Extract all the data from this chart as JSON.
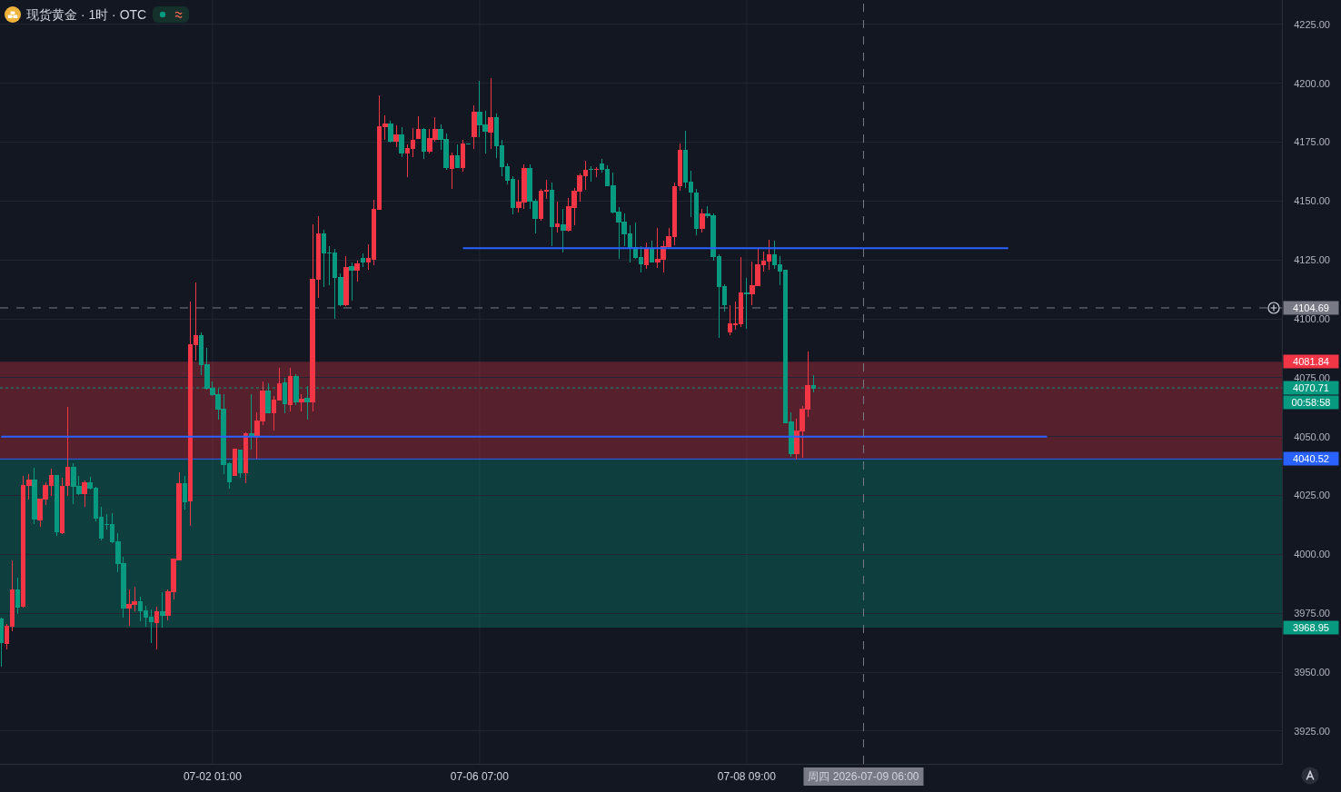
{
  "chart_data": {
    "type": "candlestick",
    "title": "现货黄金 · 1时 · OTC",
    "categories": [
      null,
      null,
      null,
      null,
      null,
      null,
      null,
      null,
      null,
      null,
      null,
      null,
      null,
      null,
      null,
      null,
      null,
      null,
      null,
      null,
      null,
      null,
      null,
      null,
      null,
      null,
      null,
      null,
      null,
      null,
      null,
      null,
      null,
      null,
      null,
      null,
      null,
      null,
      "07-02 01:00",
      null,
      null,
      null,
      null,
      null,
      null,
      null,
      null,
      null,
      null,
      null,
      null,
      null,
      null,
      null,
      null,
      null,
      null,
      null,
      null,
      null,
      null,
      null,
      null,
      null,
      null,
      null,
      null,
      null,
      null,
      null,
      null,
      null,
      null,
      null,
      null,
      null,
      null,
      null,
      null,
      null,
      null,
      null,
      null,
      null,
      null,
      null,
      "07-06 07:00",
      null,
      null,
      null,
      null,
      null,
      null,
      null,
      null,
      null,
      null,
      null,
      null,
      null,
      null,
      null,
      null,
      null,
      null,
      null,
      null,
      null,
      null,
      null,
      null,
      null,
      null,
      null,
      null,
      null,
      null,
      null,
      null,
      null,
      null,
      null,
      null,
      null,
      null,
      null,
      null,
      null,
      null,
      null,
      null,
      null,
      null,
      null,
      "07-08 09:00",
      null,
      null,
      null,
      null,
      null,
      null,
      null,
      null,
      null,
      null,
      null,
      null,
      null,
      null,
      null,
      null,
      null,
      null,
      null,
      null,
      "周四 2026-07-09 06:00",
      null,
      null,
      null,
      null,
      null,
      null,
      null,
      null,
      null,
      null,
      null,
      null,
      null,
      null,
      null,
      null,
      null,
      null,
      null,
      null,
      null,
      null,
      null,
      null,
      null,
      null,
      null,
      null,
      null,
      null,
      null,
      null,
      null,
      null,
      null,
      null,
      null,
      null,
      null,
      null,
      null,
      null,
      null,
      null,
      null,
      null,
      null,
      null,
      null,
      null,
      null,
      null,
      null,
      null,
      null,
      null,
      null,
      null,
      null,
      null,
      null,
      null,
      null,
      null,
      null,
      null,
      null,
      null,
      null,
      null,
      null,
      null,
      null,
      null,
      null
    ],
    "ohlc": [
      [
        3972.5,
        3973.0,
        3952.3,
        3962.6
      ],
      [
        3962.2,
        3970.6,
        3959.7,
        3969.4
      ],
      [
        3969.4,
        3997.6,
        3967.5,
        3984.9
      ],
      [
        3984.9,
        3990.3,
        3974.8,
        3977.5
      ],
      [
        3977.9,
        4033.5,
        3977.5,
        4029.2
      ],
      [
        4029.2,
        4034.3,
        4023.5,
        4031.6
      ],
      [
        4031.6,
        4037.0,
        4013.0,
        4015.0
      ],
      [
        4014.6,
        4023.5,
        4011.9,
        4023.5
      ],
      [
        4023.5,
        4030.8,
        4021.1,
        4029.2
      ],
      [
        4029.2,
        4036.6,
        4025.0,
        4033.5
      ],
      [
        4033.5,
        4033.9,
        4008.0,
        4009.6
      ],
      [
        4009.2,
        4032.7,
        4008.8,
        4028.9
      ],
      [
        4029.2,
        4062.8,
        4025.0,
        4037.0
      ],
      [
        4037.0,
        4038.9,
        4021.5,
        4028.9
      ],
      [
        4028.9,
        4033.5,
        4025.4,
        4025.8
      ],
      [
        4025.8,
        4031.6,
        4020.4,
        4030.4
      ],
      [
        4030.4,
        4033.1,
        4027.7,
        4028.1
      ],
      [
        4028.1,
        4028.9,
        4014.2,
        4015.4
      ],
      [
        4015.7,
        4020.4,
        4006.1,
        4006.9
      ],
      [
        4012.6,
        4017.3,
        4010.7,
        4012.6
      ],
      [
        4012.6,
        4017.7,
        4004.9,
        4005.3
      ],
      [
        4005.3,
        4009.2,
        3992.6,
        3996.0
      ],
      [
        3996.0,
        3999.1,
        3973.3,
        3977.1
      ],
      [
        3977.1,
        3985.2,
        3969.8,
        3978.7
      ],
      [
        3978.7,
        3986.4,
        3976.0,
        3979.8
      ],
      [
        3979.8,
        3982.1,
        3971.7,
        3976.0
      ],
      [
        3976.0,
        3978.3,
        3969.4,
        3973.3
      ],
      [
        3973.3,
        3976.7,
        3962.4,
        3971.3
      ],
      [
        3970.9,
        3977.9,
        3959.7,
        3975.6
      ],
      [
        3975.6,
        3984.1,
        3969.0,
        3974.0
      ],
      [
        3974.0,
        3985.2,
        3972.1,
        3984.1
      ],
      [
        3984.1,
        3998.4,
        3981.0,
        3998.0
      ],
      [
        3997.6,
        4035.0,
        3997.6,
        4030.0
      ],
      [
        4030.0,
        4033.5,
        4019.2,
        4022.3
      ],
      [
        4022.7,
        4107.2,
        4012.3,
        4089.1
      ],
      [
        4089.1,
        4115.3,
        4082.5,
        4093.0
      ],
      [
        4093.0,
        4094.1,
        4076.3,
        4080.6
      ],
      [
        4080.6,
        4087.9,
        4069.8,
        4070.6
      ],
      [
        4070.6,
        4073.3,
        4067.1,
        4067.9
      ],
      [
        4067.9,
        4070.2,
        4057.4,
        4061.7
      ],
      [
        4061.7,
        4067.9,
        4034.3,
        4038.1
      ],
      [
        4038.5,
        4039.2,
        4028.1,
        4030.8
      ],
      [
        4033.5,
        4044.7,
        4033.5,
        4044.7
      ],
      [
        4044.3,
        4044.7,
        4032.7,
        4034.6
      ],
      [
        4034.6,
        4052.0,
        4030.4,
        4051.3
      ],
      [
        4051.3,
        4067.9,
        4044.7,
        4050.5
      ],
      [
        4050.1,
        4060.5,
        4040.8,
        4056.7
      ],
      [
        4056.7,
        4073.6,
        4055.1,
        4069.4
      ],
      [
        4069.4,
        4072.5,
        4060.1,
        4060.1
      ],
      [
        4060.1,
        4067.1,
        4052.8,
        4065.5
      ],
      [
        4065.5,
        4079.1,
        4065.5,
        4072.5
      ],
      [
        4072.9,
        4074.8,
        4060.1,
        4064.0
      ],
      [
        4063.6,
        4079.4,
        4060.9,
        4075.6
      ],
      [
        4075.6,
        4076.4,
        4063.6,
        4064.8
      ],
      [
        4064.8,
        4068.2,
        4060.9,
        4065.9
      ],
      [
        4066.3,
        4071.7,
        4057.1,
        4064.8
      ],
      [
        4064.8,
        4140.1,
        4060.9,
        4116.9
      ],
      [
        4116.9,
        4143.5,
        4108.8,
        4136.2
      ],
      [
        4136.2,
        4137.8,
        4113.4,
        4128.1
      ],
      [
        4128.1,
        4130.8,
        4114.2,
        4128.1
      ],
      [
        4128.1,
        4129.6,
        4099.9,
        4117.7
      ],
      [
        4117.7,
        4119.2,
        4105.3,
        4106.1
      ],
      [
        4106.1,
        4126.5,
        4105.3,
        4121.9
      ],
      [
        4122.3,
        4123.9,
        4107.6,
        4120.8
      ],
      [
        4120.8,
        4124.6,
        4115.7,
        4123.5
      ],
      [
        4125.8,
        4127.7,
        4121.9,
        4124.2
      ],
      [
        4124.2,
        4131.6,
        4120.8,
        4125.8
      ],
      [
        4125.4,
        4150.5,
        4122.7,
        4146.6
      ],
      [
        4146.6,
        4194.9,
        4146.2,
        4181.8
      ],
      [
        4181.8,
        4186.4,
        4176.0,
        4182.9
      ],
      [
        4182.9,
        4184.1,
        4174.8,
        4175.6
      ],
      [
        4175.6,
        4182.2,
        4172.9,
        4178.3
      ],
      [
        4178.3,
        4181.4,
        4168.6,
        4170.6
      ],
      [
        4170.6,
        4174.0,
        4160.1,
        4172.5
      ],
      [
        4172.5,
        4181.0,
        4168.6,
        4176.0
      ],
      [
        4176.7,
        4186.0,
        4176.3,
        4180.6
      ],
      [
        4180.6,
        4181.0,
        4167.9,
        4171.3
      ],
      [
        4171.3,
        4180.6,
        4170.2,
        4176.7
      ],
      [
        4176.4,
        4185.6,
        4175.2,
        4180.6
      ],
      [
        4180.6,
        4182.5,
        4171.7,
        4176.4
      ],
      [
        4176.4,
        4178.7,
        4163.2,
        4164.4
      ],
      [
        4164.0,
        4170.6,
        4155.1,
        4169.4
      ],
      [
        4169.4,
        4174.0,
        4164.0,
        4164.4
      ],
      [
        4164.4,
        4176.0,
        4162.5,
        4174.4
      ],
      [
        4174.3,
        4174.3,
        4174.3,
        4174.3
      ],
      [
        4177.5,
        4190.6,
        4172.1,
        4187.6
      ],
      [
        4187.6,
        4201.1,
        4177.1,
        4182.5
      ],
      [
        4182.5,
        4188.3,
        4170.2,
        4179.8
      ],
      [
        4179.4,
        4202.2,
        4172.1,
        4185.6
      ],
      [
        4185.6,
        4187.2,
        4168.3,
        4173.7
      ],
      [
        4173.7,
        4176.0,
        4160.5,
        4164.8
      ],
      [
        4164.8,
        4165.9,
        4157.1,
        4159.0
      ],
      [
        4159.4,
        4160.5,
        4144.3,
        4147.4
      ],
      [
        4147.4,
        4159.0,
        4145.1,
        4149.7
      ],
      [
        4149.7,
        4165.5,
        4146.6,
        4164.0
      ],
      [
        4164.0,
        4165.5,
        4146.6,
        4150.1
      ],
      [
        4150.1,
        4150.9,
        4136.2,
        4142.8
      ],
      [
        4142.8,
        4155.1,
        4141.6,
        4154.4
      ],
      [
        4154.3,
        4159.0,
        4150.9,
        4154.7
      ],
      [
        4154.7,
        4157.8,
        4130.8,
        4139.3
      ],
      [
        4139.3,
        4149.7,
        4136.6,
        4140.4
      ],
      [
        4140.1,
        4146.6,
        4128.1,
        4137.7
      ],
      [
        4137.7,
        4151.3,
        4137.0,
        4147.8
      ],
      [
        4147.4,
        4155.5,
        4139.7,
        4154.3
      ],
      [
        4154.3,
        4161.7,
        4149.7,
        4160.9
      ],
      [
        4160.9,
        4167.1,
        4154.7,
        4163.2
      ],
      [
        4163.6,
        4164.8,
        4158.2,
        4163.4
      ],
      [
        4163.4,
        4164.4,
        4160.1,
        4163.6
      ],
      [
        4165.9,
        4167.9,
        4162.1,
        4163.6
      ],
      [
        4163.6,
        4165.2,
        4156.3,
        4156.7
      ],
      [
        4156.7,
        4162.1,
        4144.7,
        4145.5
      ],
      [
        4145.5,
        4147.4,
        4125.4,
        4141.2
      ],
      [
        4141.2,
        4144.7,
        4130.8,
        4136.2
      ],
      [
        4136.2,
        4139.7,
        4123.8,
        4130.4
      ],
      [
        4130.4,
        4140.8,
        4125.4,
        4126.2
      ],
      [
        4126.2,
        4130.8,
        4119.6,
        4123.5
      ],
      [
        4123.1,
        4132.3,
        4121.1,
        4129.6
      ],
      [
        4130.0,
        4133.1,
        4123.8,
        4124.2
      ],
      [
        4124.2,
        4138.5,
        4121.5,
        4125.4
      ],
      [
        4125.4,
        4133.1,
        4119.6,
        4130.8
      ],
      [
        4130.8,
        4138.5,
        4130.8,
        4135.0
      ],
      [
        4135.0,
        4157.8,
        4131.2,
        4156.3
      ],
      [
        4156.7,
        4174.4,
        4154.3,
        4171.7
      ],
      [
        4171.7,
        4179.8,
        4155.5,
        4158.2
      ],
      [
        4158.2,
        4162.8,
        4143.1,
        4154.0
      ],
      [
        4153.6,
        4155.1,
        4135.4,
        4138.5
      ],
      [
        4138.5,
        4146.6,
        4136.6,
        4144.7
      ],
      [
        4144.7,
        4147.8,
        4142.8,
        4143.9
      ],
      [
        4143.9,
        4144.7,
        4124.6,
        4126.5
      ],
      [
        4126.5,
        4127.3,
        4091.8,
        4113.8
      ],
      [
        4113.8,
        4114.6,
        4103.0,
        4106.1
      ],
      [
        4094.5,
        4105.7,
        4093.3,
        4098.0
      ],
      [
        4097.6,
        4107.2,
        4095.3,
        4098.0
      ],
      [
        4098.0,
        4126.2,
        4096.4,
        4111.1
      ],
      [
        4111.1,
        4117.3,
        4096.0,
        4110.7
      ],
      [
        4110.7,
        4124.2,
        4105.7,
        4114.2
      ],
      [
        4114.2,
        4129.6,
        4114.2,
        4123.1
      ],
      [
        4123.1,
        4128.5,
        4120.0,
        4124.6
      ],
      [
        4124.6,
        4133.5,
        4120.8,
        4127.3
      ],
      [
        4127.3,
        4133.1,
        4121.1,
        4123.1
      ],
      [
        4123.1,
        4126.5,
        4114.2,
        4120.4
      ],
      [
        4120.8,
        4120.8,
        4055.9,
        4055.9
      ],
      [
        4056.3,
        4060.4,
        4041.3,
        4042.8
      ],
      [
        4042.8,
        4057.8,
        4040.4,
        4052.4
      ],
      [
        4052.4,
        4063.0,
        4041.1,
        4061.7
      ],
      [
        4061.7,
        4086.1,
        4058.5,
        4071.7
      ],
      [
        4071.7,
        4076.1,
        4068.8,
        4070.71
      ],
      null,
      null,
      null,
      null,
      null,
      null,
      null,
      null,
      null,
      null,
      null,
      null,
      null,
      null,
      null,
      null,
      null,
      null,
      null,
      null,
      null,
      null,
      null,
      null,
      null,
      null,
      null,
      null,
      null,
      null,
      null,
      null,
      null,
      null,
      null,
      null,
      null,
      null,
      null,
      null,
      null,
      null,
      null,
      null,
      null,
      null,
      null,
      null,
      null,
      null,
      null,
      null,
      null,
      null,
      null,
      null,
      null,
      null,
      null,
      null,
      null,
      null,
      null,
      null,
      null,
      null,
      null,
      null,
      null,
      null,
      null,
      null,
      null,
      null,
      null,
      null,
      null,
      null,
      null,
      null,
      null,
      null,
      null,
      null
    ],
    "colors": [
      "#089981",
      "#f23645",
      "#f23645",
      "#089981",
      "#f23645",
      "#f23645",
      "#089981",
      "#f23645",
      "#f23645",
      "#f23645",
      "#089981",
      "#f23645",
      "#f23645",
      "#089981",
      "#089981",
      "#f23645",
      "#089981",
      "#089981",
      "#089981",
      "#089981",
      "#089981",
      "#089981",
      "#089981",
      "#f23645",
      "#f23645",
      "#089981",
      "#089981",
      "#089981",
      "#f23645",
      "#089981",
      "#f23645",
      "#f23645",
      "#f23645",
      "#089981",
      "#f23645",
      "#f23645",
      "#089981",
      "#089981",
      "#089981",
      "#089981",
      "#089981",
      "#089981",
      "#f23645",
      "#089981",
      "#f23645",
      "#089981",
      "#f23645",
      "#f23645",
      "#089981",
      "#f23645",
      "#f23645",
      "#089981",
      "#f23645",
      "#089981",
      "#f23645",
      "#089981",
      "#f23645",
      "#f23645",
      "#089981",
      "#089981",
      "#089981",
      "#089981",
      "#f23645",
      "#089981",
      "#f23645",
      "#089981",
      "#f23645",
      "#f23645",
      "#f23645",
      "#f23645",
      "#089981",
      "#f23645",
      "#089981",
      "#f23645",
      "#f23645",
      "#f23645",
      "#089981",
      "#f23645",
      "#f23645",
      "#089981",
      "#089981",
      "#f23645",
      "#089981",
      "#f23645",
      "#089981",
      "#f23645",
      "#089981",
      "#089981",
      "#f23645",
      "#089981",
      "#089981",
      "#089981",
      "#089981",
      "#f23645",
      "#f23645",
      "#089981",
      "#089981",
      "#f23645",
      "#f23645",
      "#089981",
      "#f23645",
      "#089981",
      "#f23645",
      "#f23645",
      "#f23645",
      "#f23645",
      "#089981",
      "#f23645",
      "#089981",
      "#089981",
      "#089981",
      "#089981",
      "#089981",
      "#089981",
      "#089981",
      "#089981",
      "#f23645",
      "#089981",
      "#f23645",
      "#f23645",
      "#f23645",
      "#f23645",
      "#f23645",
      "#089981",
      "#089981",
      "#089981",
      "#f23645",
      "#089981",
      "#089981",
      "#089981",
      "#089981",
      "#f23645",
      "#f23645",
      "#f23645",
      "#089981",
      "#f23645",
      "#f23645",
      "#f23645",
      "#f23645",
      "#089981",
      "#089981",
      "#089981",
      "#089981",
      "#f23645",
      "#f23645",
      "#f23645",
      "#089981",
      null,
      null,
      null,
      null,
      null,
      null,
      null,
      null,
      null,
      null,
      null,
      null,
      null,
      null,
      null,
      null,
      null,
      null,
      null,
      null,
      null,
      null,
      null,
      null,
      null,
      null,
      null,
      null,
      null,
      null,
      null,
      null,
      null,
      null,
      null,
      null,
      null,
      null,
      null,
      null,
      null,
      null,
      null,
      null,
      null,
      null,
      null,
      null,
      null,
      null,
      null,
      null,
      null,
      null,
      null,
      null,
      null,
      null,
      null,
      null,
      null,
      null,
      null,
      null,
      null,
      null,
      null,
      null,
      null,
      null,
      null,
      null,
      null,
      null,
      null,
      null,
      null,
      null,
      null,
      null,
      null,
      null,
      null,
      null
    ],
    "series": [
      {
        "type": "line",
        "color": "#2962ff",
        "values": [
          null,
          null,
          null,
          null,
          null,
          null,
          null,
          null,
          null,
          null,
          null,
          null,
          null,
          null,
          null,
          null,
          null,
          null,
          null,
          null,
          null,
          null,
          null,
          null,
          null,
          null,
          null,
          null,
          null,
          null,
          null,
          null,
          null,
          null,
          null,
          null,
          null,
          null,
          null,
          null,
          null,
          null,
          null,
          null,
          null,
          null,
          null,
          null,
          null,
          null,
          null,
          null,
          null,
          null,
          null,
          null,
          null,
          null,
          null,
          null,
          null,
          null,
          null,
          null,
          null,
          null,
          null,
          null,
          null,
          null,
          null,
          null,
          null,
          null,
          null,
          null,
          null,
          null,
          null,
          null,
          null,
          null,
          null,
          4130,
          4130,
          4130,
          4130,
          4130,
          4130,
          4130,
          4130,
          4130,
          4130,
          4130,
          4130,
          4130,
          4130,
          4130,
          4130,
          4130,
          4130,
          4130,
          4130,
          4130,
          4130,
          4130,
          4130,
          4130,
          4130,
          4130,
          4130,
          4130,
          4130,
          4130,
          4130,
          4130,
          4130,
          4130,
          4130,
          4130,
          4130,
          4130,
          4130,
          4130,
          4130,
          4130,
          4130,
          4130,
          4130,
          4130,
          4130,
          4130,
          4130,
          4130,
          4130,
          4130,
          4130,
          4130,
          4130,
          4130,
          4130,
          4130,
          4130,
          4130,
          4130,
          4130,
          4130,
          4130,
          4130,
          4130,
          4130,
          4130,
          4130,
          4130,
          4130,
          4130,
          4130,
          4130,
          4130,
          4130,
          4130,
          4130,
          4130,
          4130,
          4130,
          4130,
          4130,
          4130,
          4130,
          4130,
          4130,
          4130,
          4130,
          4130,
          4130,
          4130,
          4130,
          4130,
          4130,
          4130,
          4130,
          4130,
          null,
          null,
          null,
          null,
          null,
          null,
          null,
          null,
          null,
          null,
          null,
          null,
          null,
          null,
          null,
          null,
          null,
          null,
          null,
          null,
          null,
          null,
          null,
          null,
          null,
          null,
          null,
          null,
          null,
          null,
          null,
          null,
          null,
          null,
          null,
          null,
          null,
          null,
          null,
          null,
          null,
          null,
          null,
          null,
          null,
          null,
          null,
          null,
          null
        ]
      },
      {
        "type": "line",
        "color": "#2962ff",
        "values": [
          4050,
          4050,
          4050,
          4050,
          4050,
          4050,
          4050,
          4050,
          4050,
          4050,
          4050,
          4050,
          4050,
          4050,
          4050,
          4050,
          4050,
          4050,
          4050,
          4050,
          4050,
          4050,
          4050,
          4050,
          4050,
          4050,
          4050,
          4050,
          4050,
          4050,
          4050,
          4050,
          4050,
          4050,
          4050,
          4050,
          4050,
          4050,
          4050,
          4050,
          4050,
          4050,
          4050,
          4050,
          4050,
          4050,
          4050,
          4050,
          4050,
          4050,
          4050,
          4050,
          4050,
          4050,
          4050,
          4050,
          4050,
          4050,
          4050,
          4050,
          4050,
          4050,
          4050,
          4050,
          4050,
          4050,
          4050,
          4050,
          4050,
          4050,
          4050,
          4050,
          4050,
          4050,
          4050,
          4050,
          4050,
          4050,
          4050,
          4050,
          4050,
          4050,
          4050,
          4050,
          4050,
          4050,
          4050,
          4050,
          4050,
          4050,
          4050,
          4050,
          4050,
          4050,
          4050,
          4050,
          4050,
          4050,
          4050,
          4050,
          4050,
          4050,
          4050,
          4050,
          4050,
          4050,
          4050,
          4050,
          4050,
          4050,
          4050,
          4050,
          4050,
          4050,
          4050,
          4050,
          4050,
          4050,
          4050,
          4050,
          4050,
          4050,
          4050,
          4050,
          4050,
          4050,
          4050,
          4050,
          4050,
          4050,
          4050,
          4050,
          4050,
          4050,
          4050,
          4050,
          4050,
          4050,
          4050,
          4050,
          4050,
          4050,
          4050,
          4050,
          4050,
          4050,
          4050,
          4050,
          4050,
          4050,
          4050,
          4050,
          4050,
          4050,
          4050,
          4050,
          4050,
          4050,
          4050,
          4050,
          4050,
          4050,
          4050,
          4050,
          4050,
          4050,
          4050,
          4050,
          4050,
          4050,
          4050,
          4050,
          4050,
          4050,
          4050,
          4050,
          4050,
          4050,
          4050,
          4050,
          4050,
          4050,
          4050,
          4050,
          4050,
          4050,
          4050,
          4050,
          4050,
          null,
          null,
          null,
          null,
          null,
          null,
          null,
          null,
          null,
          null,
          null,
          null,
          null,
          null,
          null,
          null,
          null,
          null,
          null,
          null,
          null,
          null,
          null,
          null,
          null,
          null,
          null,
          null,
          null,
          null,
          null,
          null,
          null,
          null,
          null,
          null,
          null,
          null,
          null,
          null,
          null,
          null
        ]
      }
    ],
    "ylim": [
      3911.1,
      4235.4
    ],
    "yticks": [
      {
        "value": 3925,
        "label": "3925.00"
      },
      {
        "value": 3950,
        "label": "3950.00"
      },
      {
        "value": 3975,
        "label": "3975.00"
      },
      {
        "value": 4000,
        "label": "4000.00"
      },
      {
        "value": 4025,
        "label": "4025.00"
      },
      {
        "value": 4050,
        "label": "4050.00"
      },
      {
        "value": 4075,
        "label": "4075.00"
      },
      {
        "value": 4100,
        "label": "4100.00"
      },
      {
        "value": 4125,
        "label": "4125.00"
      },
      {
        "value": 4150,
        "label": "4150.00"
      },
      {
        "value": 4175,
        "label": "4175.00"
      },
      {
        "value": 4200,
        "label": "4200.00"
      },
      {
        "value": 4225,
        "label": "4225.00"
      }
    ],
    "bands": [
      {
        "axis": "y",
        "from": 4040.52,
        "to": 4081.84,
        "label": "4081.84",
        "color": "#f23645"
      },
      {
        "axis": "y",
        "from": 4040.52,
        "to": 3968.95,
        "label": "3968.95",
        "color": "#089981"
      }
    ],
    "ref_lines": [
      {
        "axis": "y",
        "value": 4104.69,
        "label": "4104.69",
        "color": "#787b86",
        "line_style": "dashed"
      },
      {
        "axis": "x",
        "value": "周四 2026-07-09 06:00",
        "color": "#787b86",
        "line_style": "dashed"
      },
      {
        "axis": "y",
        "value": 4070.71,
        "label": "4070.71",
        "color": "#089981",
        "line_style": "dotted"
      },
      {
        "axis": "y",
        "value": 4040.52,
        "label": "4040.52",
        "color": "#2962ff"
      }
    ],
    "annotations": [
      "00:58:58"
    ],
    "grid": true
  }
}
